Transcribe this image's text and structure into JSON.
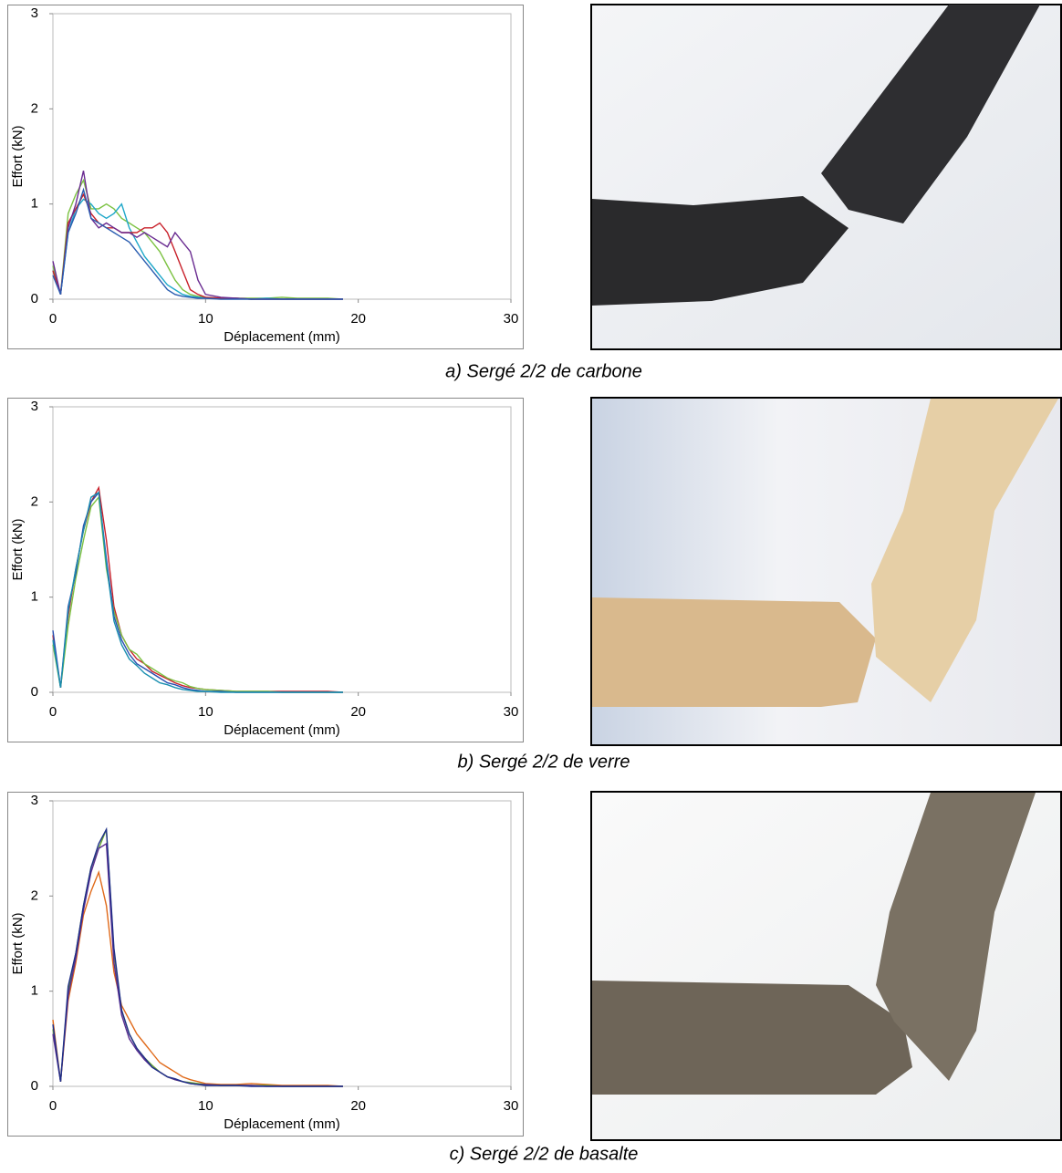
{
  "chart_data": [
    {
      "type": "line",
      "xlabel": "Déplacement (mm)",
      "ylabel": "Effort (kN)",
      "xlim": [
        0,
        30
      ],
      "ylim": [
        0,
        3
      ],
      "xticks": [
        0,
        10,
        20,
        30
      ],
      "yticks": [
        0,
        1,
        2,
        3
      ],
      "x": [
        0,
        0.5,
        1,
        1.5,
        2,
        2.5,
        3,
        3.5,
        4,
        4.5,
        5,
        5.5,
        6,
        6.5,
        7,
        7.5,
        8,
        8.5,
        9,
        9.5,
        10,
        11,
        12,
        13,
        14,
        15,
        16,
        17,
        18,
        19
      ],
      "series": [
        {
          "color": "#7cc242",
          "values": [
            0.35,
            0.05,
            0.9,
            1.1,
            1.25,
            0.95,
            0.95,
            1.0,
            0.95,
            0.85,
            0.8,
            0.75,
            0.7,
            0.6,
            0.5,
            0.35,
            0.2,
            0.1,
            0.05,
            0.03,
            0.02,
            0.01,
            0.01,
            0.01,
            0.01,
            0.02,
            0.01,
            0.01,
            0.01,
            0.0
          ]
        },
        {
          "color": "#1ea7c9",
          "values": [
            0.3,
            0.05,
            0.7,
            0.95,
            1.05,
            1.0,
            0.9,
            0.85,
            0.9,
            1.0,
            0.75,
            0.6,
            0.45,
            0.35,
            0.25,
            0.15,
            0.1,
            0.05,
            0.03,
            0.02,
            0.01,
            0.01,
            0.01,
            0.0,
            0.01,
            0.0,
            0.0,
            0.0,
            0.0,
            0.0
          ]
        },
        {
          "color": "#c8202a",
          "values": [
            0.3,
            0.05,
            0.8,
            0.95,
            1.1,
            0.9,
            0.8,
            0.75,
            0.75,
            0.7,
            0.7,
            0.7,
            0.75,
            0.75,
            0.8,
            0.7,
            0.5,
            0.3,
            0.1,
            0.05,
            0.02,
            0.01,
            0.01,
            0.0,
            0.0,
            0.0,
            0.0,
            0.0,
            0.0,
            0.0
          ]
        },
        {
          "color": "#6a2c91",
          "values": [
            0.4,
            0.05,
            0.75,
            1.0,
            1.35,
            0.85,
            0.75,
            0.8,
            0.75,
            0.7,
            0.7,
            0.65,
            0.7,
            0.65,
            0.6,
            0.55,
            0.7,
            0.6,
            0.5,
            0.2,
            0.05,
            0.02,
            0.01,
            0.0,
            0.0,
            0.0,
            0.0,
            0.0,
            0.0,
            0.0
          ]
        },
        {
          "color": "#2a5db0",
          "values": [
            0.25,
            0.05,
            0.7,
            0.9,
            1.15,
            0.85,
            0.8,
            0.75,
            0.7,
            0.65,
            0.6,
            0.5,
            0.4,
            0.3,
            0.2,
            0.1,
            0.05,
            0.03,
            0.02,
            0.01,
            0.01,
            0.0,
            0.0,
            0.0,
            0.0,
            0.0,
            0.0,
            0.0,
            0.0,
            0.0
          ]
        }
      ]
    },
    {
      "type": "line",
      "xlabel": "Déplacement (mm)",
      "ylabel": "Effort (kN)",
      "xlim": [
        0,
        30
      ],
      "ylim": [
        0,
        3
      ],
      "xticks": [
        0,
        10,
        20,
        30
      ],
      "yticks": [
        0,
        1,
        2,
        3
      ],
      "x": [
        0,
        0.5,
        1,
        1.5,
        2,
        2.5,
        3,
        3.5,
        4,
        4.5,
        5,
        5.5,
        6,
        6.5,
        7,
        7.5,
        8,
        8.5,
        9,
        9.5,
        10,
        11,
        12,
        13,
        14,
        15,
        16,
        17,
        18,
        19
      ],
      "series": [
        {
          "color": "#c8202a",
          "values": [
            0.6,
            0.05,
            0.8,
            1.3,
            1.7,
            2.0,
            2.15,
            1.6,
            0.9,
            0.6,
            0.45,
            0.35,
            0.3,
            0.22,
            0.18,
            0.14,
            0.1,
            0.07,
            0.05,
            0.04,
            0.03,
            0.02,
            0.01,
            0.01,
            0.01,
            0.01,
            0.01,
            0.01,
            0.01,
            0.0
          ]
        },
        {
          "color": "#7cc242",
          "values": [
            0.5,
            0.05,
            0.7,
            1.2,
            1.6,
            1.95,
            2.05,
            1.3,
            0.85,
            0.6,
            0.45,
            0.4,
            0.3,
            0.25,
            0.2,
            0.15,
            0.12,
            0.1,
            0.06,
            0.04,
            0.03,
            0.02,
            0.01,
            0.01,
            0.01,
            0.0,
            0.0,
            0.0,
            0.0,
            0.0
          ]
        },
        {
          "color": "#2a4fb0",
          "values": [
            0.65,
            0.05,
            0.9,
            1.25,
            1.75,
            2.0,
            2.1,
            1.4,
            0.8,
            0.55,
            0.4,
            0.3,
            0.25,
            0.2,
            0.15,
            0.1,
            0.08,
            0.05,
            0.03,
            0.02,
            0.01,
            0.01,
            0.0,
            0.0,
            0.0,
            0.0,
            0.0,
            0.0,
            0.0,
            0.0
          ]
        },
        {
          "color": "#1a8fb0",
          "values": [
            0.55,
            0.05,
            0.85,
            1.3,
            1.7,
            2.05,
            2.1,
            1.35,
            0.75,
            0.5,
            0.35,
            0.28,
            0.2,
            0.15,
            0.1,
            0.08,
            0.05,
            0.03,
            0.02,
            0.01,
            0.01,
            0.0,
            0.0,
            0.0,
            0.0,
            0.0,
            0.0,
            0.0,
            0.0,
            0.0
          ]
        }
      ]
    },
    {
      "type": "line",
      "xlabel": "Déplacement (mm)",
      "ylabel": "Effort (kN)",
      "xlim": [
        0,
        30
      ],
      "ylim": [
        0,
        3
      ],
      "xticks": [
        0,
        10,
        20,
        30
      ],
      "yticks": [
        0,
        1,
        2,
        3
      ],
      "x": [
        0,
        0.5,
        1,
        1.5,
        2,
        2.5,
        3,
        3.5,
        4,
        4.5,
        5,
        5.5,
        6,
        6.5,
        7,
        7.5,
        8,
        8.5,
        9,
        9.5,
        10,
        11,
        12,
        13,
        14,
        15,
        16,
        17,
        18,
        19
      ],
      "series": [
        {
          "color": "#e06a1a",
          "values": [
            0.7,
            0.05,
            0.9,
            1.3,
            1.8,
            2.05,
            2.25,
            1.9,
            1.2,
            0.85,
            0.7,
            0.55,
            0.45,
            0.35,
            0.25,
            0.2,
            0.15,
            0.1,
            0.07,
            0.05,
            0.03,
            0.02,
            0.02,
            0.03,
            0.02,
            0.01,
            0.01,
            0.01,
            0.01,
            0.0
          ]
        },
        {
          "color": "#6aa832",
          "values": [
            0.6,
            0.05,
            1.0,
            1.4,
            1.9,
            2.3,
            2.5,
            2.7,
            1.4,
            0.8,
            0.55,
            0.4,
            0.3,
            0.22,
            0.15,
            0.1,
            0.07,
            0.05,
            0.04,
            0.03,
            0.02,
            0.01,
            0.01,
            0.01,
            0.01,
            0.0,
            0.0,
            0.0,
            0.0,
            0.0
          ]
        },
        {
          "color": "#5a2d91",
          "values": [
            0.55,
            0.05,
            0.95,
            1.35,
            1.85,
            2.25,
            2.5,
            2.55,
            1.3,
            0.75,
            0.5,
            0.38,
            0.28,
            0.2,
            0.15,
            0.1,
            0.07,
            0.05,
            0.03,
            0.02,
            0.02,
            0.01,
            0.01,
            0.01,
            0.0,
            0.0,
            0.0,
            0.0,
            0.0,
            0.0
          ]
        },
        {
          "color": "#1f2f8a",
          "values": [
            0.65,
            0.05,
            1.05,
            1.4,
            1.9,
            2.3,
            2.55,
            2.7,
            1.45,
            0.8,
            0.55,
            0.4,
            0.3,
            0.2,
            0.15,
            0.1,
            0.08,
            0.05,
            0.03,
            0.02,
            0.01,
            0.01,
            0.01,
            0.0,
            0.0,
            0.0,
            0.0,
            0.0,
            0.0,
            0.0
          ]
        }
      ]
    }
  ],
  "captions": [
    "a) Sergé 2/2 de carbone",
    "b) Sergé 2/2 de verre",
    "c) Sergé 2/2 de basalte"
  ]
}
